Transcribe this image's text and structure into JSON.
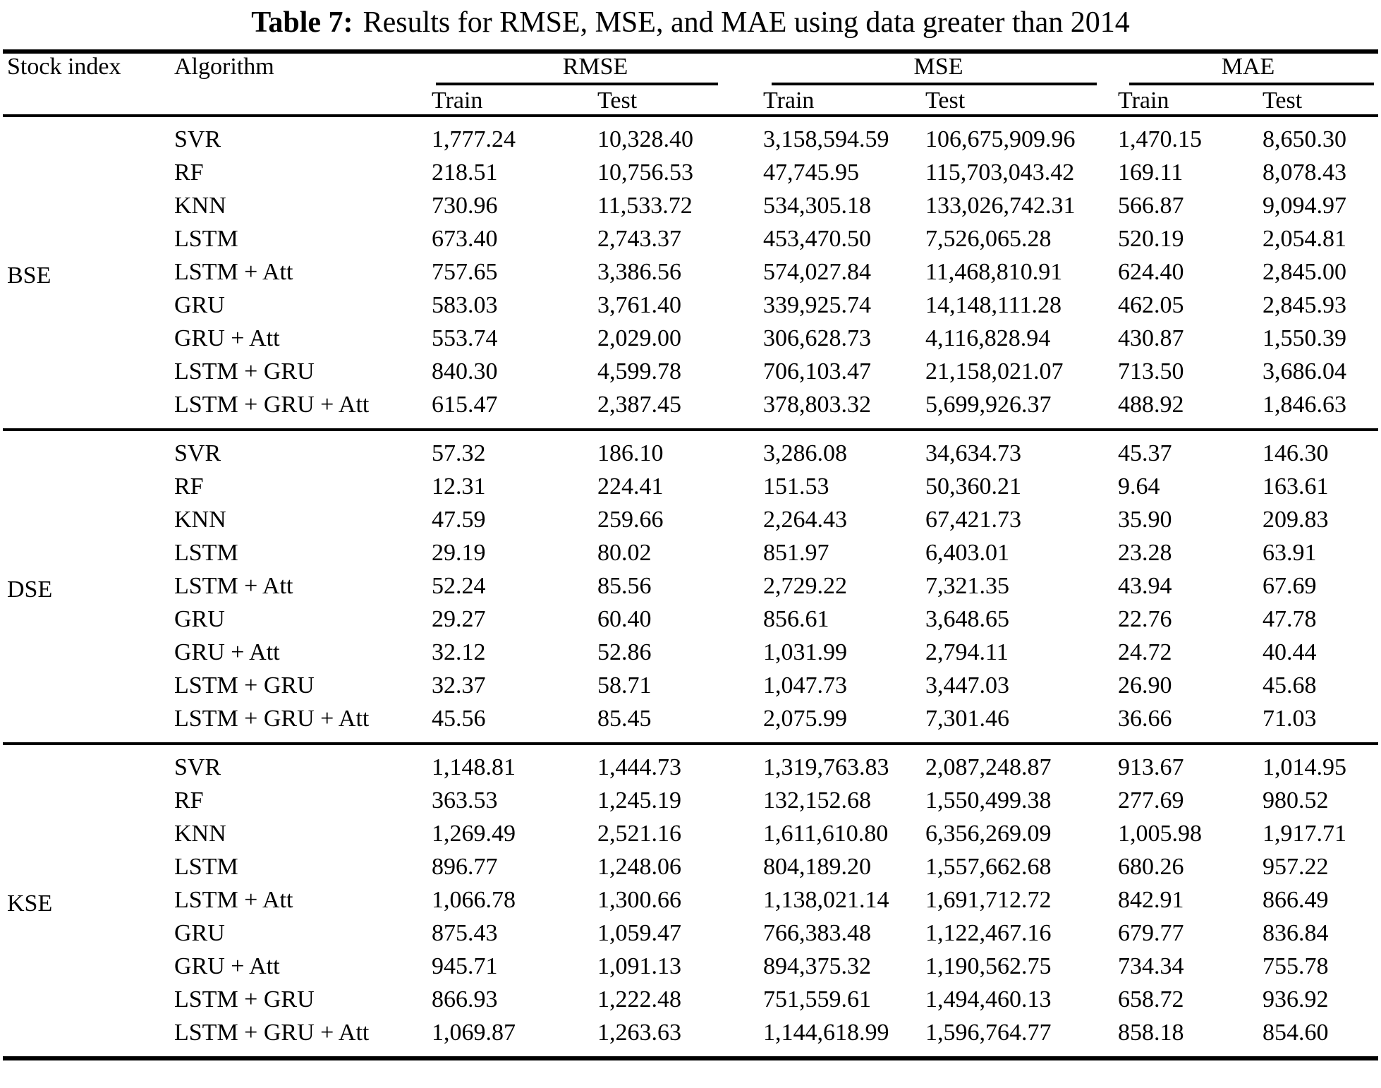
{
  "title": {
    "prefix": "Table 7:",
    "text": "Results for RMSE, MSE, and MAE using data greater than 2014"
  },
  "colors": {
    "text": "#000000",
    "background": "#ffffff",
    "rule": "#000000"
  },
  "table": {
    "col_headers": {
      "stock_index": "Stock index",
      "algorithm": "Algorithm",
      "groups": [
        "RMSE",
        "MSE",
        "MAE"
      ],
      "sub": [
        "Train",
        "Test"
      ]
    },
    "value_keys": [
      "rmse_train",
      "rmse_test",
      "mse_train",
      "mse_test",
      "mae_train",
      "mae_test"
    ],
    "sections": [
      {
        "stock_index": "BSE",
        "rows": [
          {
            "algorithm": "SVR",
            "rmse_train": "1,777.24",
            "rmse_test": "10,328.40",
            "mse_train": "3,158,594.59",
            "mse_test": "106,675,909.96",
            "mae_train": "1,470.15",
            "mae_test": "8,650.30"
          },
          {
            "algorithm": "RF",
            "rmse_train": "218.51",
            "rmse_test": "10,756.53",
            "mse_train": "47,745.95",
            "mse_test": "115,703,043.42",
            "mae_train": "169.11",
            "mae_test": "8,078.43"
          },
          {
            "algorithm": "KNN",
            "rmse_train": "730.96",
            "rmse_test": "11,533.72",
            "mse_train": "534,305.18",
            "mse_test": "133,026,742.31",
            "mae_train": "566.87",
            "mae_test": "9,094.97"
          },
          {
            "algorithm": "LSTM",
            "rmse_train": "673.40",
            "rmse_test": "2,743.37",
            "mse_train": "453,470.50",
            "mse_test": "7,526,065.28",
            "mae_train": "520.19",
            "mae_test": "2,054.81"
          },
          {
            "algorithm": "LSTM + Att",
            "rmse_train": "757.65",
            "rmse_test": "3,386.56",
            "mse_train": "574,027.84",
            "mse_test": "11,468,810.91",
            "mae_train": "624.40",
            "mae_test": "2,845.00"
          },
          {
            "algorithm": "GRU",
            "rmse_train": "583.03",
            "rmse_test": "3,761.40",
            "mse_train": "339,925.74",
            "mse_test": "14,148,111.28",
            "mae_train": "462.05",
            "mae_test": "2,845.93"
          },
          {
            "algorithm": "GRU + Att",
            "rmse_train": "553.74",
            "rmse_test": "2,029.00",
            "mse_train": "306,628.73",
            "mse_test": "4,116,828.94",
            "mae_train": "430.87",
            "mae_test": "1,550.39"
          },
          {
            "algorithm": "LSTM + GRU",
            "rmse_train": "840.30",
            "rmse_test": "4,599.78",
            "mse_train": "706,103.47",
            "mse_test": "21,158,021.07",
            "mae_train": "713.50",
            "mae_test": "3,686.04"
          },
          {
            "algorithm": "LSTM + GRU + Att",
            "rmse_train": "615.47",
            "rmse_test": "2,387.45",
            "mse_train": "378,803.32",
            "mse_test": "5,699,926.37",
            "mae_train": "488.92",
            "mae_test": "1,846.63"
          }
        ]
      },
      {
        "stock_index": "DSE",
        "rows": [
          {
            "algorithm": "SVR",
            "rmse_train": "57.32",
            "rmse_test": "186.10",
            "mse_train": "3,286.08",
            "mse_test": "34,634.73",
            "mae_train": "45.37",
            "mae_test": "146.30"
          },
          {
            "algorithm": "RF",
            "rmse_train": "12.31",
            "rmse_test": "224.41",
            "mse_train": "151.53",
            "mse_test": "50,360.21",
            "mae_train": "9.64",
            "mae_test": "163.61"
          },
          {
            "algorithm": "KNN",
            "rmse_train": "47.59",
            "rmse_test": "259.66",
            "mse_train": "2,264.43",
            "mse_test": "67,421.73",
            "mae_train": "35.90",
            "mae_test": "209.83"
          },
          {
            "algorithm": "LSTM",
            "rmse_train": "29.19",
            "rmse_test": "80.02",
            "mse_train": "851.97",
            "mse_test": "6,403.01",
            "mae_train": "23.28",
            "mae_test": "63.91"
          },
          {
            "algorithm": "LSTM + Att",
            "rmse_train": "52.24",
            "rmse_test": "85.56",
            "mse_train": "2,729.22",
            "mse_test": "7,321.35",
            "mae_train": "43.94",
            "mae_test": "67.69"
          },
          {
            "algorithm": "GRU",
            "rmse_train": "29.27",
            "rmse_test": "60.40",
            "mse_train": "856.61",
            "mse_test": "3,648.65",
            "mae_train": "22.76",
            "mae_test": "47.78"
          },
          {
            "algorithm": "GRU + Att",
            "rmse_train": "32.12",
            "rmse_test": "52.86",
            "mse_train": "1,031.99",
            "mse_test": "2,794.11",
            "mae_train": "24.72",
            "mae_test": "40.44"
          },
          {
            "algorithm": "LSTM + GRU",
            "rmse_train": "32.37",
            "rmse_test": "58.71",
            "mse_train": "1,047.73",
            "mse_test": "3,447.03",
            "mae_train": "26.90",
            "mae_test": "45.68"
          },
          {
            "algorithm": "LSTM + GRU + Att",
            "rmse_train": "45.56",
            "rmse_test": "85.45",
            "mse_train": "2,075.99",
            "mse_test": "7,301.46",
            "mae_train": "36.66",
            "mae_test": "71.03"
          }
        ]
      },
      {
        "stock_index": "KSE",
        "rows": [
          {
            "algorithm": "SVR",
            "rmse_train": "1,148.81",
            "rmse_test": "1,444.73",
            "mse_train": "1,319,763.83",
            "mse_test": "2,087,248.87",
            "mae_train": "913.67",
            "mae_test": "1,014.95"
          },
          {
            "algorithm": "RF",
            "rmse_train": "363.53",
            "rmse_test": "1,245.19",
            "mse_train": "132,152.68",
            "mse_test": "1,550,499.38",
            "mae_train": "277.69",
            "mae_test": "980.52"
          },
          {
            "algorithm": "KNN",
            "rmse_train": "1,269.49",
            "rmse_test": "2,521.16",
            "mse_train": "1,611,610.80",
            "mse_test": "6,356,269.09",
            "mae_train": "1,005.98",
            "mae_test": "1,917.71"
          },
          {
            "algorithm": "LSTM",
            "rmse_train": "896.77",
            "rmse_test": "1,248.06",
            "mse_train": "804,189.20",
            "mse_test": "1,557,662.68",
            "mae_train": "680.26",
            "mae_test": "957.22"
          },
          {
            "algorithm": "LSTM + Att",
            "rmse_train": "1,066.78",
            "rmse_test": "1,300.66",
            "mse_train": "1,138,021.14",
            "mse_test": "1,691,712.72",
            "mae_train": "842.91",
            "mae_test": "866.49"
          },
          {
            "algorithm": "GRU",
            "rmse_train": "875.43",
            "rmse_test": "1,059.47",
            "mse_train": "766,383.48",
            "mse_test": "1,122,467.16",
            "mae_train": "679.77",
            "mae_test": "836.84"
          },
          {
            "algorithm": "GRU + Att",
            "rmse_train": "945.71",
            "rmse_test": "1,091.13",
            "mse_train": "894,375.32",
            "mse_test": "1,190,562.75",
            "mae_train": "734.34",
            "mae_test": "755.78"
          },
          {
            "algorithm": "LSTM + GRU",
            "rmse_train": "866.93",
            "rmse_test": "1,222.48",
            "mse_train": "751,559.61",
            "mse_test": "1,494,460.13",
            "mae_train": "658.72",
            "mae_test": "936.92"
          },
          {
            "algorithm": "LSTM + GRU + Att",
            "rmse_train": "1,069.87",
            "rmse_test": "1,263.63",
            "mse_train": "1,144,618.99",
            "mse_test": "1,596,764.77",
            "mae_train": "858.18",
            "mae_test": "854.60"
          }
        ]
      }
    ]
  }
}
